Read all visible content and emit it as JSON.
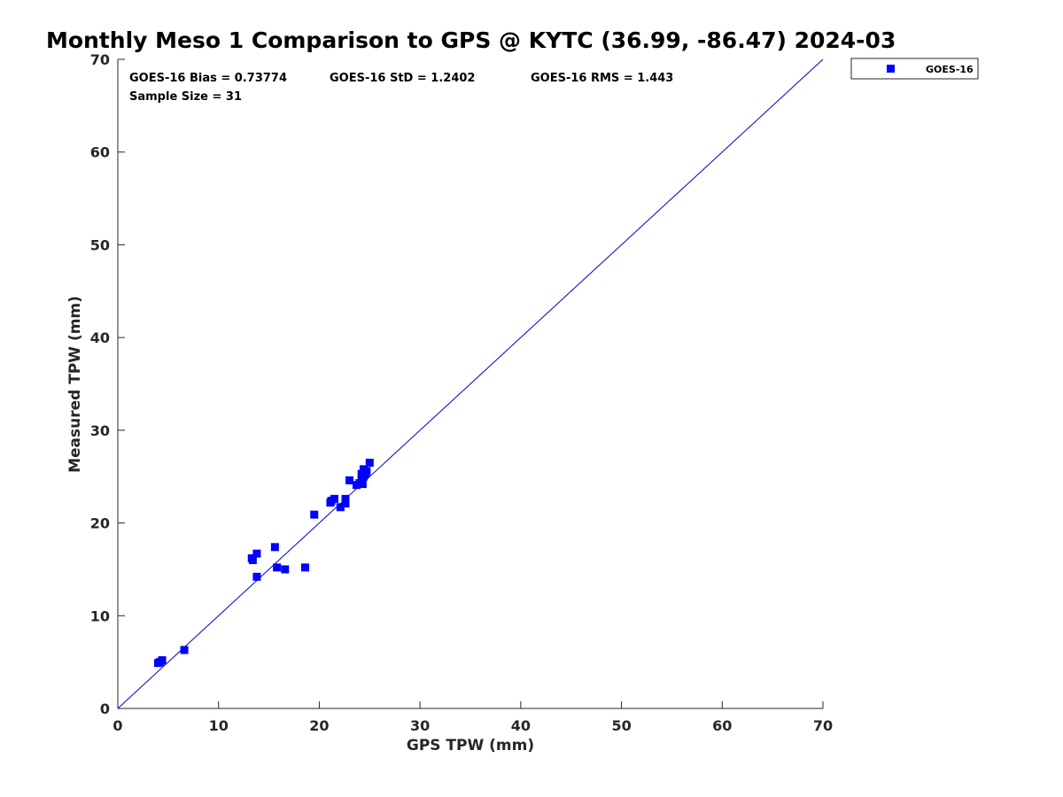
{
  "chart_data": {
    "type": "scatter",
    "title": "Monthly Meso 1 Comparison to GPS @ KYTC (36.99, -86.47) 2024-03",
    "xlabel": "GPS TPW (mm)",
    "ylabel": "Measured TPW (mm)",
    "xlim": [
      0,
      70
    ],
    "ylim": [
      0,
      70
    ],
    "xticks": [
      "0",
      "10",
      "20",
      "30",
      "40",
      "50",
      "60",
      "70"
    ],
    "yticks": [
      "0",
      "10",
      "20",
      "30",
      "40",
      "50",
      "60",
      "70"
    ],
    "grid": false,
    "legend_position": "top-right-outside",
    "stats": {
      "bias": "GOES-16 Bias = 0.73774",
      "std": "GOES-16 StD = 1.2402",
      "rms": "GOES-16 RMS = 1.443",
      "sample": "Sample Size = 31"
    },
    "reference_line": {
      "x": [
        0,
        70
      ],
      "y": [
        0,
        70
      ],
      "color": "#0000cc"
    },
    "series": [
      {
        "name": "GOES-16",
        "color": "#0000ff",
        "marker": "square",
        "points": [
          [
            4.0,
            4.9
          ],
          [
            4.2,
            5.0
          ],
          [
            4.4,
            5.2
          ],
          [
            6.6,
            6.3
          ],
          [
            13.3,
            16.2
          ],
          [
            13.4,
            16.0
          ],
          [
            13.8,
            16.7
          ],
          [
            13.8,
            14.2
          ],
          [
            15.6,
            17.4
          ],
          [
            15.8,
            15.2
          ],
          [
            16.6,
            15.0
          ],
          [
            18.6,
            15.2
          ],
          [
            19.5,
            20.9
          ],
          [
            21.1,
            22.2
          ],
          [
            21.2,
            22.4
          ],
          [
            21.5,
            22.6
          ],
          [
            22.1,
            21.7
          ],
          [
            22.6,
            22.1
          ],
          [
            22.6,
            22.6
          ],
          [
            23.0,
            24.6
          ],
          [
            23.7,
            24.1
          ],
          [
            24.0,
            24.3
          ],
          [
            24.2,
            24.8
          ],
          [
            24.2,
            25.3
          ],
          [
            24.3,
            24.2
          ],
          [
            24.4,
            25.0
          ],
          [
            24.5,
            25.2
          ],
          [
            24.4,
            25.8
          ],
          [
            24.6,
            25.4
          ],
          [
            24.7,
            25.6
          ],
          [
            25.0,
            26.5
          ]
        ]
      }
    ]
  }
}
